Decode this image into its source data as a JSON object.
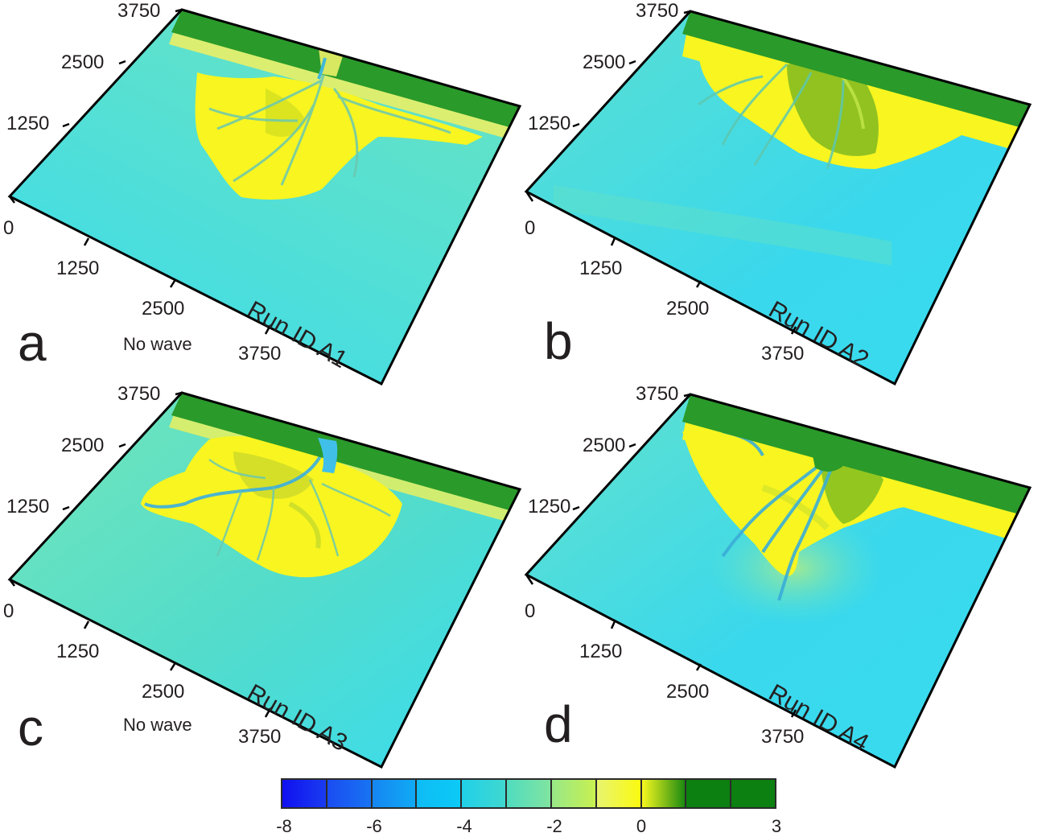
{
  "figure": {
    "panels": [
      {
        "letter": "a",
        "run_id": "Run ID A1",
        "wave_note": "No wave",
        "y_ticks": [
          "3750",
          "2500",
          "1250",
          "0"
        ],
        "x_ticks": [
          "1250",
          "2500",
          "3750"
        ]
      },
      {
        "letter": "b",
        "run_id": "Run ID A2",
        "wave_note": "",
        "y_ticks": [
          "3750",
          "2500",
          "1250",
          "0"
        ],
        "x_ticks": [
          "1250",
          "2500",
          "3750"
        ]
      },
      {
        "letter": "c",
        "run_id": "Run ID A3",
        "wave_note": "No wave",
        "y_ticks": [
          "3750",
          "2500",
          "1250",
          "0"
        ],
        "x_ticks": [
          "1250",
          "2500",
          "3750"
        ]
      },
      {
        "letter": "d",
        "run_id": "Run ID A4",
        "wave_note": "",
        "y_ticks": [
          "3750",
          "2500",
          "1250",
          "0"
        ],
        "x_ticks": [
          "1250",
          "2500",
          "3750"
        ]
      }
    ],
    "colorbar": {
      "tick_labels": [
        "-8",
        "-6",
        "-4",
        "-2",
        "0",
        "3"
      ],
      "segments": [
        {
          "from": "#1010f0",
          "to": "#1a3cf0"
        },
        {
          "from": "#1a4cf2",
          "to": "#1874f2"
        },
        {
          "from": "#1686f2",
          "to": "#10aaf4"
        },
        {
          "from": "#0ebcf5",
          "to": "#0ccaf6"
        },
        {
          "from": "#20d0e8",
          "to": "#40d8d0"
        },
        {
          "from": "#50dcc0",
          "to": "#80e4a0"
        },
        {
          "from": "#98e888",
          "to": "#c8f050"
        },
        {
          "from": "#e8f470",
          "to": "#fafa10"
        },
        {
          "from": "#f8f820",
          "to": "#1c8a10"
        },
        {
          "from": "#0c8010",
          "to": "#0c8010"
        },
        {
          "from": "#0c8010",
          "to": "#0c8010"
        }
      ]
    },
    "colors": {
      "land_green": "#2a9a2a",
      "delta_yellow": "#f8f520",
      "shallow_teal": "#6ce6c0",
      "deep_cyan": "#38dcf0"
    }
  },
  "chart_data": {
    "type": "heatmap",
    "title": "",
    "description": "Four 3D perspective surface plots of delta bathymetry/elevation (simulated delta morphology)",
    "axis_ranges": {
      "x": [
        0,
        5000
      ],
      "y": [
        0,
        3750
      ]
    },
    "x_ticks": [
      0,
      1250,
      2500,
      3750
    ],
    "y_ticks": [
      0,
      1250,
      2500,
      3750
    ],
    "colorbar": {
      "label": "",
      "range": [
        -8,
        3
      ],
      "ticks": [
        -8,
        -6,
        -4,
        -2,
        0,
        3
      ],
      "segments": 11
    },
    "panels": [
      {
        "id": "a",
        "run": "A1",
        "condition": "No wave",
        "delta_shape": "lobate, fine distributary network, centered single channel"
      },
      {
        "id": "b",
        "run": "A2",
        "condition": "",
        "delta_shape": "wave-influenced, cuspate, shore-parallel smoothing, several long channels"
      },
      {
        "id": "c",
        "run": "A3",
        "condition": "No wave",
        "delta_shape": "lobate, branching channel to the left"
      },
      {
        "id": "d",
        "run": "A4",
        "condition": "",
        "delta_shape": "asymmetric, elongate channels with mouth bars extending offshore"
      }
    ]
  }
}
